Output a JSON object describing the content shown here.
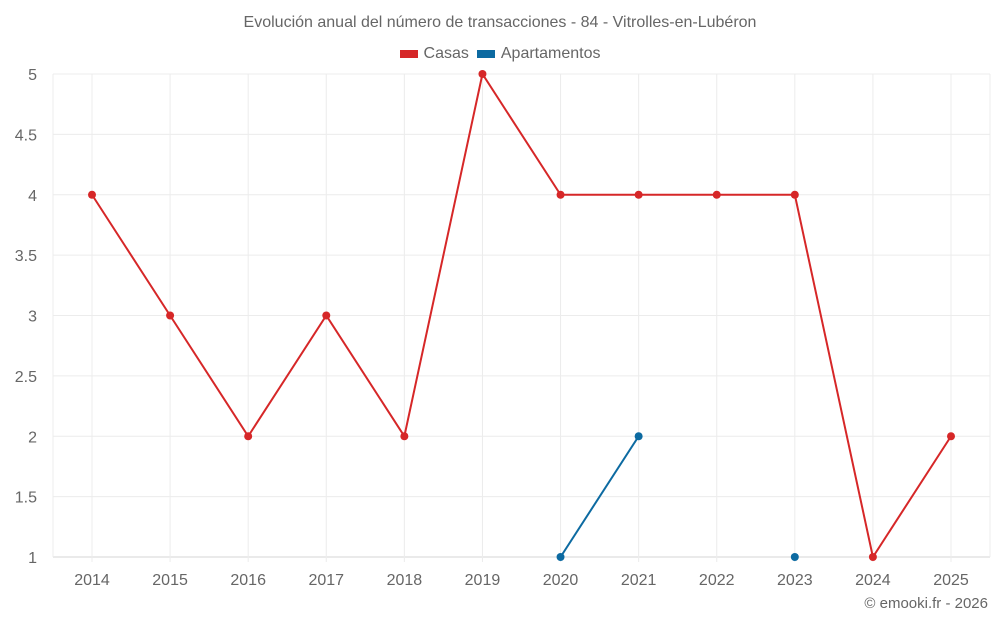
{
  "header": {
    "title": "Evolución anual del número de transacciones - 84 - Vitrolles-en-Lubéron"
  },
  "legend": {
    "items": [
      {
        "label": "Casas",
        "color": "#d62728"
      },
      {
        "label": "Apartamentos",
        "color": "#0c6aa1"
      }
    ]
  },
  "footer": {
    "credit": "© emooki.fr - 2026"
  },
  "chart_data": {
    "type": "line",
    "title": "Evolución anual del número de transacciones - 84 - Vitrolles-en-Lubéron",
    "xlabel": "",
    "ylabel": "",
    "categories": [
      "2014",
      "2015",
      "2016",
      "2017",
      "2018",
      "2019",
      "2020",
      "2021",
      "2022",
      "2023",
      "2024",
      "2025"
    ],
    "yticks": [
      "1",
      "1.5",
      "2",
      "2.5",
      "3",
      "3.5",
      "4",
      "4.5",
      "5"
    ],
    "ylim": [
      1,
      5
    ],
    "grid": true,
    "legend_position": "top",
    "series": [
      {
        "name": "Casas",
        "color": "#d62728",
        "values": [
          4,
          3,
          2,
          3,
          2,
          5,
          4,
          4,
          4,
          4,
          1,
          2
        ]
      },
      {
        "name": "Apartamentos",
        "color": "#0c6aa1",
        "values": [
          null,
          null,
          null,
          null,
          null,
          null,
          1,
          2,
          null,
          1,
          null,
          null
        ]
      }
    ]
  }
}
